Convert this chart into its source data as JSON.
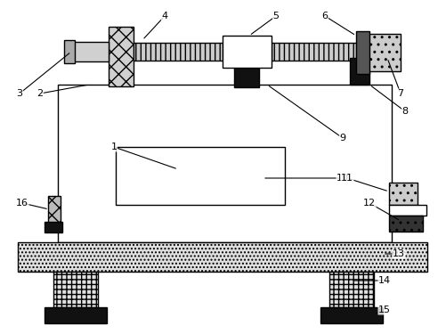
{
  "bg_color": "#ffffff",
  "lc": "#000000",
  "lw": 1.0,
  "fig_w": 5.02,
  "fig_h": 3.75,
  "dpi": 100
}
